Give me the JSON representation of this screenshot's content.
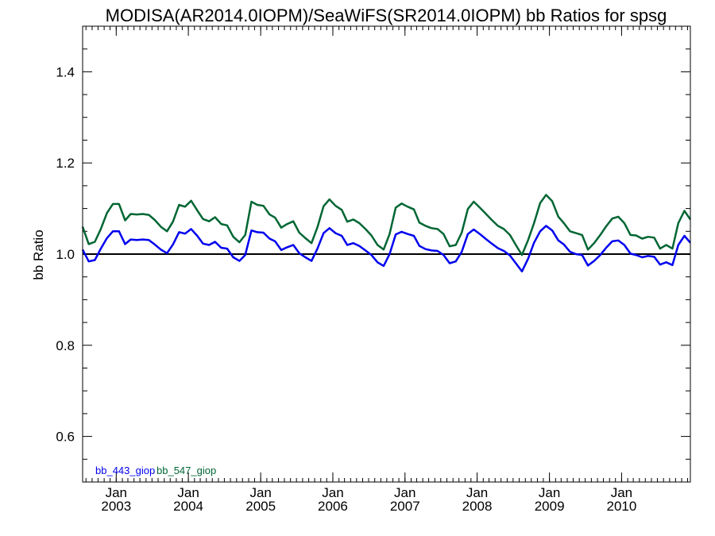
{
  "chart_data": {
    "type": "line",
    "title": "MODISA(AR2014.0IOPM)/SeaWiFS(SR2014.0IOPM)  bb Ratios for spsg",
    "xlabel": "",
    "ylabel": "bb Ratio",
    "xlim": [
      "2002-07-15",
      "2010-12-15"
    ],
    "ylim": [
      0.5,
      1.5
    ],
    "yticks": [
      "0.6",
      "0.8",
      "1.0",
      "1.2",
      "1.4"
    ],
    "xticks": [
      {
        "month": "Jan",
        "year": "2003",
        "date": "2003-01-01"
      },
      {
        "month": "Jan",
        "year": "2004",
        "date": "2004-01-01"
      },
      {
        "month": "Jan",
        "year": "2005",
        "date": "2005-01-01"
      },
      {
        "month": "Jan",
        "year": "2006",
        "date": "2006-01-01"
      },
      {
        "month": "Jan",
        "year": "2007",
        "date": "2007-01-01"
      },
      {
        "month": "Jan",
        "year": "2008",
        "date": "2008-01-01"
      },
      {
        "month": "Jan",
        "year": "2009",
        "date": "2009-01-01"
      },
      {
        "month": "Jan",
        "year": "2010",
        "date": "2010-01-01"
      }
    ],
    "reference_line": 1.0,
    "grid": false,
    "legend_position": "bottom-left",
    "x": [
      "2002-07",
      "2002-08",
      "2002-09",
      "2002-10",
      "2002-11",
      "2002-12",
      "2003-01",
      "2003-02",
      "2003-03",
      "2003-04",
      "2003-05",
      "2003-06",
      "2003-07",
      "2003-08",
      "2003-09",
      "2003-10",
      "2003-11",
      "2003-12",
      "2004-01",
      "2004-02",
      "2004-03",
      "2004-04",
      "2004-05",
      "2004-06",
      "2004-07",
      "2004-08",
      "2004-09",
      "2004-10",
      "2004-11",
      "2004-12",
      "2005-01",
      "2005-02",
      "2005-03",
      "2005-04",
      "2005-05",
      "2005-06",
      "2005-07",
      "2005-08",
      "2005-09",
      "2005-10",
      "2005-11",
      "2005-12",
      "2006-01",
      "2006-02",
      "2006-03",
      "2006-04",
      "2006-05",
      "2006-06",
      "2006-07",
      "2006-08",
      "2006-09",
      "2006-10",
      "2006-11",
      "2006-12",
      "2007-01",
      "2007-02",
      "2007-03",
      "2007-04",
      "2007-05",
      "2007-06",
      "2007-07",
      "2007-08",
      "2007-09",
      "2007-10",
      "2007-11",
      "2007-12",
      "2008-01",
      "2008-02",
      "2008-03",
      "2008-04",
      "2008-05",
      "2008-06",
      "2008-07",
      "2008-08",
      "2008-09",
      "2008-10",
      "2008-11",
      "2008-12",
      "2009-01",
      "2009-02",
      "2009-03",
      "2009-04",
      "2009-05",
      "2009-06",
      "2009-07",
      "2009-08",
      "2009-09",
      "2009-10",
      "2009-11",
      "2009-12",
      "2010-01",
      "2010-02",
      "2010-03",
      "2010-04",
      "2010-05",
      "2010-06",
      "2010-07",
      "2010-08",
      "2010-09",
      "2010-10",
      "2010-11",
      "2010-12"
    ],
    "series": [
      {
        "name": "bb_443_giop",
        "color": "#0000ee",
        "values": [
          1.01,
          0.984,
          0.987,
          1.012,
          1.035,
          1.05,
          1.05,
          1.022,
          1.032,
          1.031,
          1.032,
          1.031,
          1.021,
          1.01,
          1.002,
          1.021,
          1.048,
          1.045,
          1.055,
          1.04,
          1.023,
          1.02,
          1.027,
          1.014,
          1.012,
          0.993,
          0.985,
          0.998,
          1.052,
          1.048,
          1.047,
          1.034,
          1.028,
          1.009,
          1.015,
          1.02,
          1.002,
          0.993,
          0.985,
          1.012,
          1.046,
          1.057,
          1.046,
          1.04,
          1.02,
          1.024,
          1.018,
          1.008,
          0.998,
          0.982,
          0.974,
          1.0,
          1.043,
          1.049,
          1.044,
          1.04,
          1.018,
          1.011,
          1.008,
          1.007,
          0.998,
          0.98,
          0.984,
          1.005,
          1.044,
          1.054,
          1.044,
          1.033,
          1.023,
          1.013,
          1.007,
          0.997,
          0.98,
          0.962,
          0.99,
          1.025,
          1.05,
          1.062,
          1.052,
          1.03,
          1.021,
          1.005,
          1.0,
          0.998,
          0.975,
          0.985,
          0.998,
          1.014,
          1.028,
          1.03,
          1.02,
          1.001,
          0.998,
          0.993,
          0.996,
          0.994,
          0.977,
          0.982,
          0.976,
          1.02,
          1.04,
          1.025
        ]
      },
      {
        "name": "bb_547_giop",
        "color": "#006633",
        "values": [
          1.06,
          1.022,
          1.027,
          1.055,
          1.09,
          1.11,
          1.11,
          1.074,
          1.088,
          1.087,
          1.088,
          1.086,
          1.075,
          1.06,
          1.05,
          1.071,
          1.108,
          1.104,
          1.117,
          1.096,
          1.077,
          1.072,
          1.081,
          1.066,
          1.063,
          1.038,
          1.026,
          1.042,
          1.115,
          1.108,
          1.106,
          1.087,
          1.08,
          1.058,
          1.066,
          1.072,
          1.047,
          1.035,
          1.024,
          1.059,
          1.105,
          1.12,
          1.106,
          1.097,
          1.071,
          1.076,
          1.068,
          1.055,
          1.041,
          1.02,
          1.01,
          1.044,
          1.102,
          1.111,
          1.104,
          1.098,
          1.069,
          1.062,
          1.057,
          1.055,
          1.044,
          1.017,
          1.02,
          1.047,
          1.099,
          1.115,
          1.102,
          1.088,
          1.075,
          1.062,
          1.055,
          1.042,
          1.02,
          0.998,
          1.031,
          1.068,
          1.112,
          1.13,
          1.116,
          1.082,
          1.068,
          1.05,
          1.046,
          1.042,
          1.01,
          1.024,
          1.042,
          1.061,
          1.078,
          1.082,
          1.068,
          1.042,
          1.041,
          1.034,
          1.038,
          1.036,
          1.012,
          1.02,
          1.012,
          1.068,
          1.095,
          1.076
        ]
      }
    ]
  }
}
